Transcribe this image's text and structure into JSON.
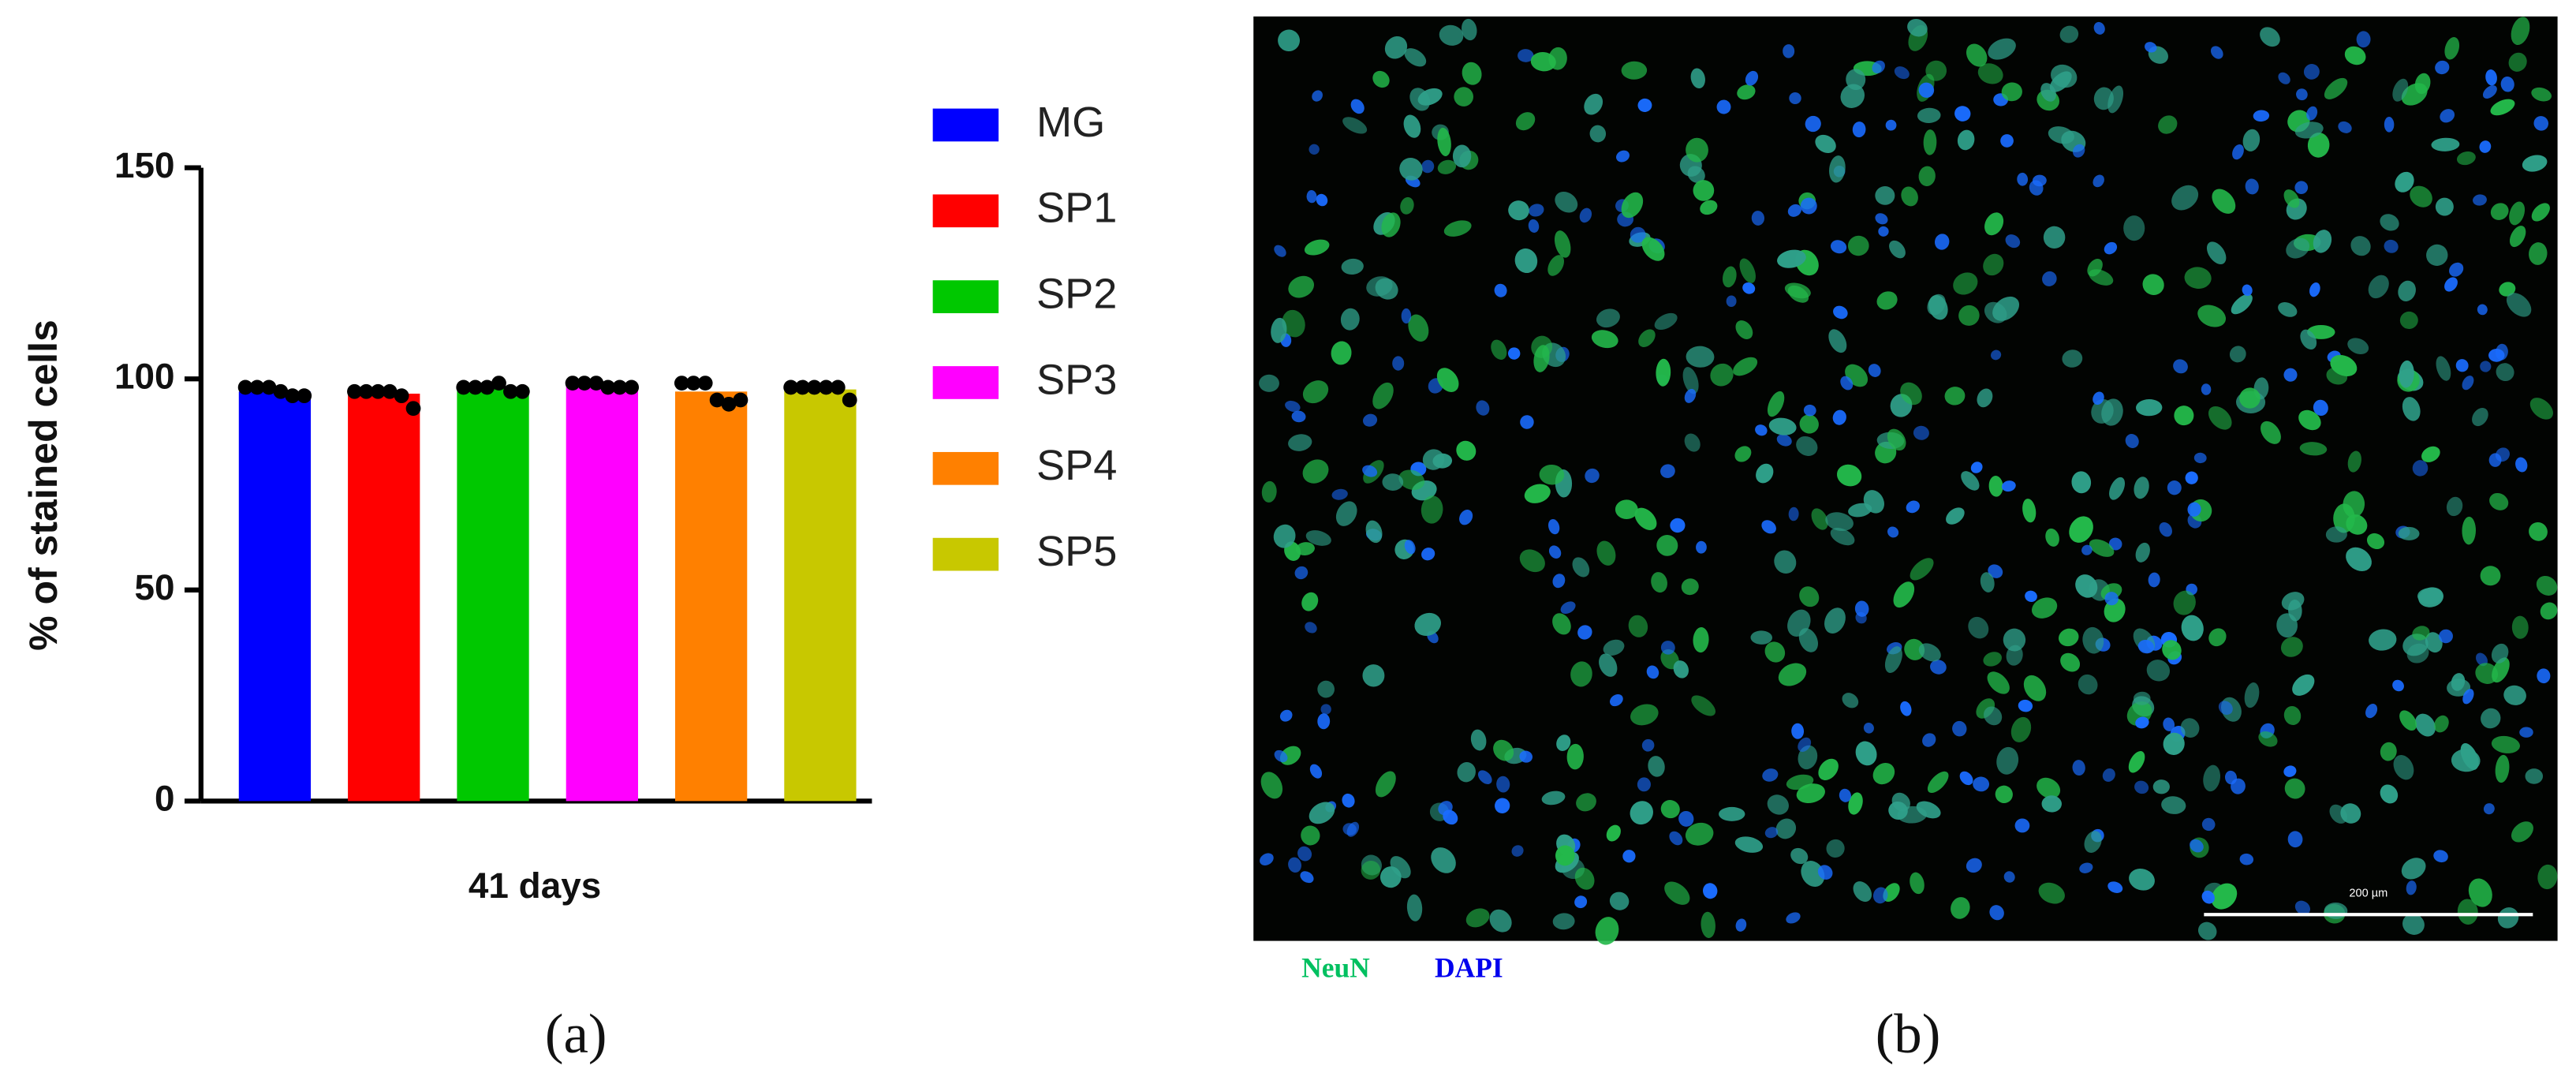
{
  "chart_data": {
    "type": "bar",
    "y_label": "% of stained cells",
    "categories": [
      "41 days"
    ],
    "series": [
      {
        "name": "MG",
        "color": "#0000ff",
        "values": [
          97
        ],
        "points": [
          98,
          98,
          98,
          97,
          96,
          96
        ]
      },
      {
        "name": "SP1",
        "color": "#ff0000",
        "values": [
          96.5
        ],
        "points": [
          97,
          97,
          97,
          97,
          96,
          93
        ]
      },
      {
        "name": "SP2",
        "color": "#00c800",
        "values": [
          98
        ],
        "points": [
          98,
          98,
          98,
          99,
          97,
          97
        ]
      },
      {
        "name": "SP3",
        "color": "#ff00ff",
        "values": [
          98.5
        ],
        "points": [
          99,
          99,
          99,
          98,
          98,
          98
        ]
      },
      {
        "name": "SP4",
        "color": "#ff8000",
        "values": [
          97
        ],
        "points": [
          99,
          99,
          99,
          95,
          94,
          95
        ]
      },
      {
        "name": "SP5",
        "color": "#c8c800",
        "values": [
          97.5
        ],
        "points": [
          98,
          98,
          98,
          98,
          98,
          95
        ]
      }
    ],
    "ylim": [
      0,
      150
    ],
    "yticks": [
      0,
      50,
      100,
      150
    ],
    "panel_label": "(a)"
  },
  "image": {
    "panel_label": "(b)",
    "stain_labels": [
      {
        "text": "NeuN",
        "color": "#00c060"
      },
      {
        "text": "DAPI",
        "color": "#0000ee"
      }
    ],
    "scale_bar_label": "200 µm"
  }
}
